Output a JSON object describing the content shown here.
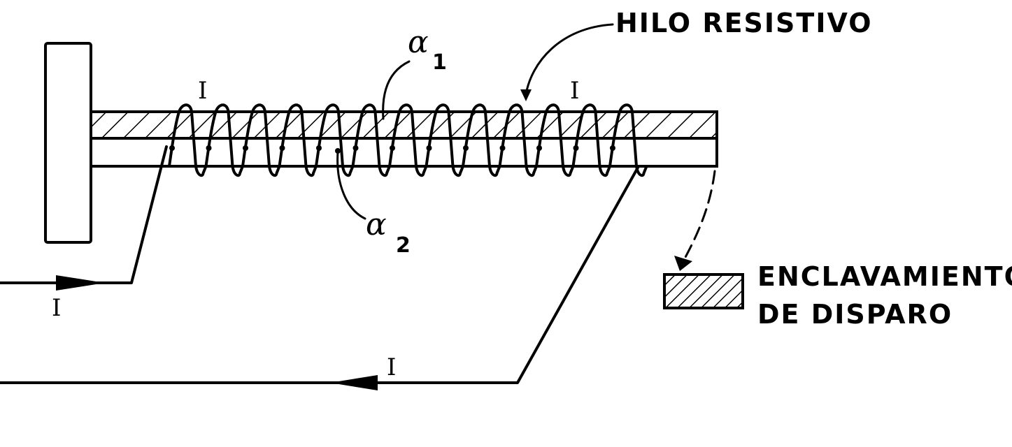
{
  "labels": {
    "wire": "HILO  RESISTIVO",
    "latch_line1": "ENCLAVAMIENTO",
    "latch_line2": "DE  DISPARO",
    "alpha": "α",
    "alpha1_sub": "1",
    "alpha2_sub": "2",
    "current": "I"
  },
  "colors": {
    "ink": "#000000",
    "background": "#ffffff"
  }
}
